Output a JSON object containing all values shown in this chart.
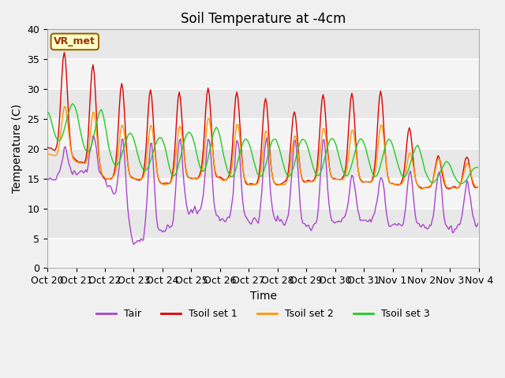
{
  "title": "Soil Temperature at -4cm",
  "xlabel": "Time",
  "ylabel": "Temperature (C)",
  "ylim": [
    0,
    40
  ],
  "annotation": "VR_met",
  "bg_color": "#e8e8e8",
  "plot_bg": "#e8e8e8",
  "fig_bg": "#f0f0f0",
  "line_colors": {
    "Tair": "#aa44cc",
    "Tsoil set 1": "#dd0000",
    "Tsoil set 2": "#ff9900",
    "Tsoil set 3": "#22cc22"
  },
  "xtick_labels": [
    "Oct 20",
    "Oct 21",
    "Oct 22",
    "Oct 23",
    "Oct 24",
    "Oct 25",
    "Oct 26",
    "Oct 27",
    "Oct 28",
    "Oct 29",
    "Oct 30",
    "Oct 31",
    "Nov 1",
    "Nov 2",
    "Nov 3",
    "Nov 4"
  ],
  "yticks": [
    0,
    5,
    10,
    15,
    20,
    25,
    30,
    35,
    40
  ],
  "title_fontsize": 12,
  "axis_fontsize": 10,
  "tick_fontsize": 9,
  "legend_fontsize": 9,
  "n_days": 15,
  "hrs_per_day": 24
}
